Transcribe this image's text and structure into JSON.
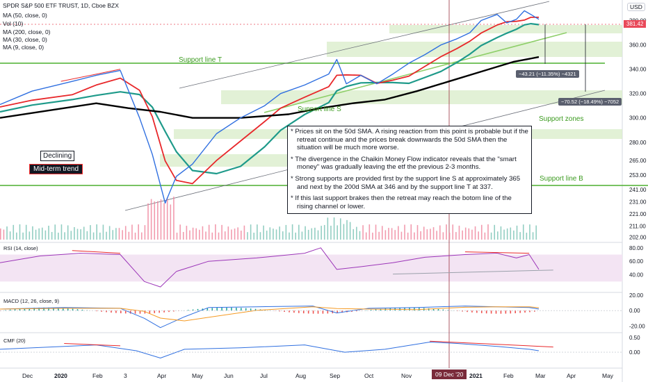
{
  "header": {
    "title": "SPDR S&P 500 ETF TRUST, 1D, Cboe BZX",
    "indicators": [
      "Vol (10)",
      "MA (50, close, 0)",
      "MA (200, close, 0)",
      "MA (30, close, 0)",
      "MA (9, close, 0)"
    ],
    "currency": "USD"
  },
  "annotations": {
    "support_line_T": "Support line T",
    "support_line_S": "Support line S",
    "support_line_B": "Support line B",
    "support_zones": "Support zones",
    "declining": "Declining",
    "midterm_trend": "Mid-term trend",
    "measure_1": "−43.21 (−11.35%) −4321",
    "measure_2": "−70.52 (−18.49%) −7052",
    "note": [
      "* Prices sit on the 50d SMA. A rising reaction from this point is probable but if the retreat continue and the prices break downwards the 50d SMA then the situation will be much more worse.",
      "* The divergence in the Chaikin Money Flow indicator reveals that the \"smart money\" was gradually leaving the etf the previous 2-3 months.",
      "* Strong supports are provided first by the support line S at approximately 365 and next by the 200d SMA at 346 and by the support line T at 337.",
      "* If this last support brakes then the retreat may reach the botom line of the rising channel or lower."
    ]
  },
  "last_price": "381.42",
  "crosshair_date": "09 Dec '20",
  "colors": {
    "price_line": "#2f6fe0",
    "ma9": "#2f6fe0",
    "ma30": "#e8272a",
    "ma50": "#1e9a8a",
    "ma200": "#000000",
    "support_green": "#4caf2f",
    "zone_fill": "#d8ecc8",
    "rsi_line": "#9b34b8",
    "cmf_line": "#2f6fe0",
    "divergence": "#e8272a"
  },
  "chart_data": [
    {
      "type": "line",
      "title": "SPDR S&P 500 ETF TRUST, 1D, Cboe BZX",
      "x": [
        "Dec",
        "2020",
        "Feb",
        "3",
        "Apr",
        "May",
        "Jun",
        "Jul",
        "Aug",
        "Sep",
        "Oct",
        "Nov",
        "09 Dec '20",
        "2021",
        "Feb",
        "Mar",
        "Apr",
        "May"
      ],
      "y_ticks": [
        202,
        211,
        221,
        231,
        241,
        253,
        265,
        280,
        300,
        320,
        340,
        360,
        380
      ],
      "ylim": [
        200,
        390
      ],
      "series": [
        {
          "name": "Close",
          "points": [
            [
              0,
              311
            ],
            [
              20,
              322
            ],
            [
              45,
              330
            ],
            [
              60,
              335
            ],
            [
              75,
              339
            ],
            [
              87,
              300
            ],
            [
              95,
              270
            ],
            [
              103,
              230
            ],
            [
              110,
              252
            ],
            [
              120,
              262
            ],
            [
              135,
              287
            ],
            [
              150,
              300
            ],
            [
              165,
              310
            ],
            [
              175,
              320
            ],
            [
              190,
              327
            ],
            [
              205,
              336
            ],
            [
              210,
              348
            ],
            [
              216,
              328
            ],
            [
              225,
              335
            ],
            [
              235,
              328
            ],
            [
              245,
              336
            ],
            [
              255,
              345
            ],
            [
              265,
              352
            ],
            [
              275,
              360
            ],
            [
              285,
              365
            ],
            [
              293,
              370
            ],
            [
              300,
              380
            ],
            [
              310,
              385
            ],
            [
              316,
              378
            ],
            [
              322,
              381
            ],
            [
              327,
              388
            ],
            [
              331,
              385
            ],
            [
              336,
              381
            ]
          ]
        },
        {
          "name": "MA (200, close, 0)",
          "points": [
            [
              0,
              300
            ],
            [
              40,
              308
            ],
            [
              60,
              312
            ],
            [
              80,
              308
            ],
            [
              100,
              305
            ],
            [
              120,
              300
            ],
            [
              150,
              300
            ],
            [
              180,
              303
            ],
            [
              200,
              308
            ],
            [
              220,
              312
            ],
            [
              240,
              315
            ],
            [
              260,
              322
            ],
            [
              280,
              330
            ],
            [
              300,
              338
            ],
            [
              320,
              346
            ],
            [
              336,
              350
            ]
          ]
        }
      ]
    },
    {
      "type": "line",
      "title": "RSI (14, close)",
      "y_ticks": [
        40,
        60,
        80
      ],
      "ylim": [
        20,
        85
      ],
      "series": [
        {
          "name": "RSI",
          "points": [
            [
              0,
              58
            ],
            [
              25,
              68
            ],
            [
              50,
              72
            ],
            [
              75,
              70
            ],
            [
              90,
              30
            ],
            [
              100,
              22
            ],
            [
              110,
              45
            ],
            [
              130,
              60
            ],
            [
              160,
              65
            ],
            [
              190,
              72
            ],
            [
              200,
              80
            ],
            [
              210,
              48
            ],
            [
              225,
              52
            ],
            [
              245,
              58
            ],
            [
              265,
              66
            ],
            [
              290,
              70
            ],
            [
              310,
              72
            ],
            [
              322,
              65
            ],
            [
              330,
              70
            ],
            [
              336,
              48
            ]
          ]
        }
      ]
    },
    {
      "type": "line",
      "title": "MACD (12, 26, close, 9)",
      "y_ticks": [
        -20,
        0,
        20
      ],
      "ylim": [
        -25,
        20
      ],
      "series": [
        {
          "name": "MACD",
          "points": [
            [
              0,
              2
            ],
            [
              40,
              4
            ],
            [
              75,
              3
            ],
            [
              90,
              -10
            ],
            [
              100,
              -22
            ],
            [
              115,
              -8
            ],
            [
              130,
              4
            ],
            [
              160,
              5
            ],
            [
              195,
              6
            ],
            [
              210,
              -3
            ],
            [
              230,
              3
            ],
            [
              260,
              4
            ],
            [
              290,
              6
            ],
            [
              310,
              5
            ],
            [
              330,
              4
            ],
            [
              336,
              2
            ]
          ]
        }
      ]
    },
    {
      "type": "line",
      "title": "CMF (20)",
      "y_ticks": [
        0.0,
        0.5
      ],
      "ylim": [
        -0.5,
        0.6
      ],
      "series": [
        {
          "name": "CMF",
          "points": [
            [
              0,
              0.1
            ],
            [
              40,
              0.2
            ],
            [
              60,
              0.25
            ],
            [
              85,
              0.05
            ],
            [
              100,
              -0.2
            ],
            [
              115,
              0.1
            ],
            [
              150,
              0.15
            ],
            [
              190,
              0.25
            ],
            [
              215,
              0.0
            ],
            [
              240,
              0.1
            ],
            [
              268,
              0.35
            ],
            [
              285,
              0.3
            ],
            [
              310,
              0.2
            ],
            [
              330,
              0.1
            ],
            [
              336,
              0.05
            ]
          ]
        }
      ]
    }
  ]
}
